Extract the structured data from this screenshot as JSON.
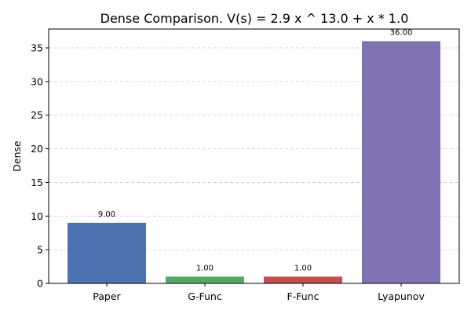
{
  "chart_data": {
    "type": "bar",
    "title": "Dense Comparison. V(s) = 2.9 x ^ 13.0 + x * 1.0",
    "xlabel": "",
    "ylabel": "Dense",
    "categories": [
      "Paper",
      "G-Func",
      "F-Func",
      "Lyapunov"
    ],
    "values": [
      9.0,
      1.0,
      1.0,
      36.0
    ],
    "value_labels": [
      "9.00",
      "1.00",
      "1.00",
      "36.00"
    ],
    "colors": [
      "#4c72b0",
      "#55a868",
      "#c44e52",
      "#8172b2"
    ],
    "ylim": [
      0,
      37.8
    ],
    "yticks": [
      0,
      5,
      10,
      15,
      20,
      25,
      30,
      35
    ],
    "grid": true,
    "legend": "none"
  }
}
